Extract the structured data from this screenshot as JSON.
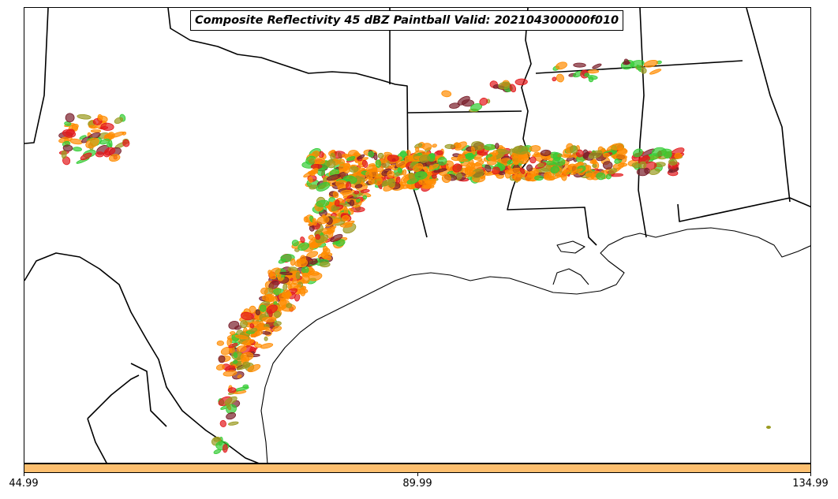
{
  "title": "Composite Reflectivity 45 dBZ Paintball Valid: 202104300000f010",
  "colorbar": {
    "color": "#fdbf6f",
    "ticks": [
      "44.99",
      "89.99",
      "134.99"
    ]
  },
  "colors": {
    "orange": "#ff8c00",
    "red": "#e31a1c",
    "green": "#33cc33",
    "olive": "#9a9a20",
    "darkred": "#7a1f2b"
  }
}
